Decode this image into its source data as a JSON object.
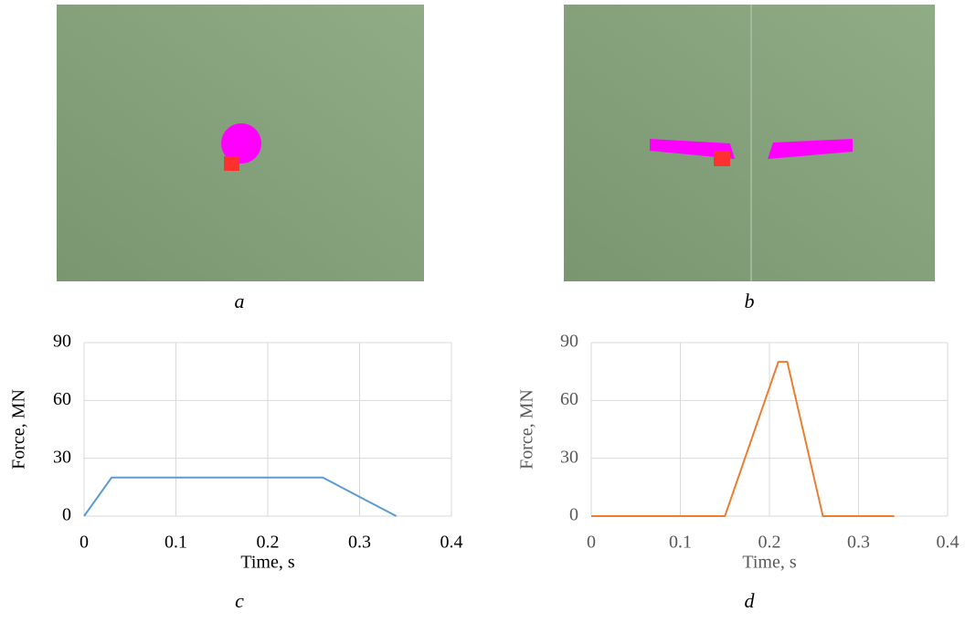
{
  "panels": {
    "a": "a",
    "b": "b"
  },
  "chart_data": [
    {
      "type": "line",
      "caption": "c",
      "xlabel": "Time, s",
      "ylabel": "Force, MN",
      "xlim": [
        0,
        0.4
      ],
      "ylim": [
        0,
        90
      ],
      "xticks": [
        0,
        0.1,
        0.2,
        0.3,
        0.4
      ],
      "yticks": [
        0,
        30,
        60,
        90
      ],
      "grid": true,
      "series": [
        {
          "color": "#5b9bd5",
          "x": [
            0,
            0.03,
            0.26,
            0.34
          ],
          "values": [
            0,
            20,
            20,
            0
          ]
        }
      ]
    },
    {
      "type": "line",
      "caption": "d",
      "xlabel": "Time, s",
      "ylabel": "Force, MN",
      "xlim": [
        0,
        0.4
      ],
      "ylim": [
        0,
        90
      ],
      "xticks": [
        0,
        0.1,
        0.2,
        0.3,
        0.4
      ],
      "yticks": [
        0,
        30,
        60,
        90
      ],
      "grid": true,
      "series": [
        {
          "color": "#ed7d31",
          "x": [
            0,
            0.15,
            0.21,
            0.22,
            0.26,
            0.34
          ],
          "values": [
            0,
            0,
            80,
            80,
            0,
            0
          ]
        }
      ]
    }
  ]
}
